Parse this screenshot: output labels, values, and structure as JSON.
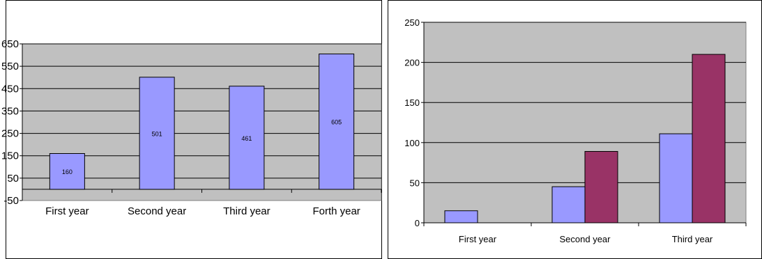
{
  "chart_data": [
    {
      "type": "bar",
      "categories": [
        "First year",
        "Second year",
        "Third year",
        "Forth year"
      ],
      "series": [
        {
          "values": [
            160,
            501,
            461,
            605
          ],
          "color": "#9999ff"
        }
      ],
      "data_labels": [
        "160",
        "501",
        "461",
        "605"
      ],
      "yticks": [
        "-50",
        "50",
        "150",
        "250",
        "350",
        "450",
        "550",
        "650"
      ],
      "ylim": [
        -50,
        650
      ],
      "grid": true,
      "legend": "none",
      "plot_background": "#c0c0c0"
    },
    {
      "type": "bar",
      "categories": [
        "First year",
        "Second year",
        "Third year"
      ],
      "series": [
        {
          "values": [
            15,
            45,
            111
          ],
          "color": "#9999ff"
        },
        {
          "values": [
            0,
            89,
            210
          ],
          "color": "#993366"
        }
      ],
      "yticks": [
        "0",
        "50",
        "100",
        "150",
        "200",
        "250"
      ],
      "ylim": [
        0,
        250
      ],
      "grid": true,
      "legend": "none",
      "plot_background": "#c0c0c0"
    }
  ]
}
